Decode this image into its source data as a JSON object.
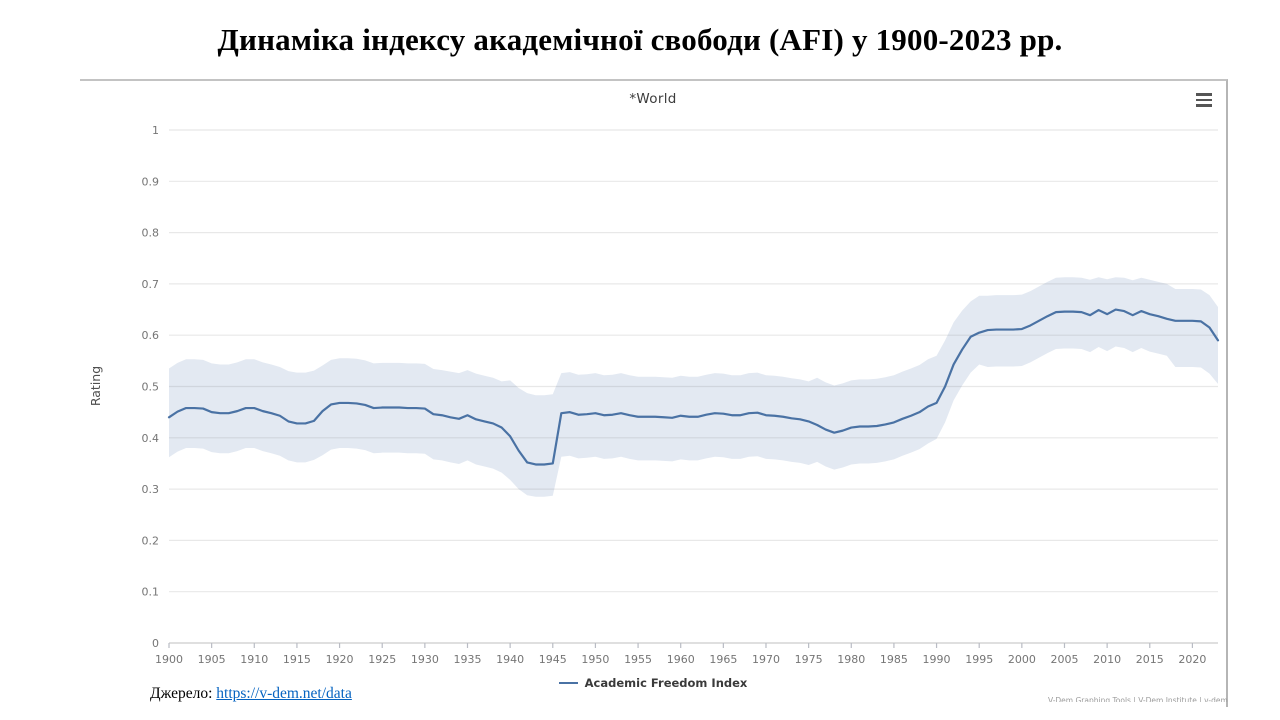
{
  "page": {
    "title": "Динаміка індексу академічної свободи (AFI) у 1900-2023 рр.",
    "source_label": "Джерело:",
    "source_link": "https://v-dem.net/data",
    "attribution_partial": "V-Dem Graphing Tools  |  V-Dem Institute  |  v-dem.net",
    "link_color": "#0563c1"
  },
  "chart": {
    "title": "*World",
    "ylabel": "Rating",
    "colors": {
      "line": "#4a72a4",
      "band": "#e3e9f2",
      "grid": "rgba(110,110,110,0.16)",
      "axis": "rgba(110,110,110,0.35)",
      "tick": "#b9bcc4",
      "tick_text": "#757575"
    }
  },
  "chart_data": {
    "type": "line",
    "title": "*World",
    "xlabel": "",
    "ylabel": "Rating",
    "ylim": [
      0,
      1
    ],
    "y_ticks": [
      0,
      0.1,
      0.2,
      0.3,
      0.4,
      0.5,
      0.6,
      0.7,
      0.8,
      0.9,
      1
    ],
    "x_ticks": [
      1900,
      1905,
      1910,
      1915,
      1920,
      1925,
      1930,
      1935,
      1940,
      1945,
      1950,
      1955,
      1960,
      1965,
      1970,
      1975,
      1980,
      1985,
      1990,
      1995,
      2000,
      2005,
      2010,
      2015,
      2020
    ],
    "grid": true,
    "legend_position": "bottom",
    "series": [
      {
        "name": "Academic Freedom Index",
        "x": [
          1900,
          1901,
          1902,
          1903,
          1904,
          1905,
          1906,
          1907,
          1908,
          1909,
          1910,
          1911,
          1912,
          1913,
          1914,
          1915,
          1916,
          1917,
          1918,
          1919,
          1920,
          1921,
          1922,
          1923,
          1924,
          1925,
          1926,
          1927,
          1928,
          1929,
          1930,
          1931,
          1932,
          1933,
          1934,
          1935,
          1936,
          1937,
          1938,
          1939,
          1940,
          1941,
          1942,
          1943,
          1944,
          1945,
          1946,
          1947,
          1948,
          1949,
          1950,
          1951,
          1952,
          1953,
          1954,
          1955,
          1956,
          1957,
          1958,
          1959,
          1960,
          1961,
          1962,
          1963,
          1964,
          1965,
          1966,
          1967,
          1968,
          1969,
          1970,
          1971,
          1972,
          1973,
          1974,
          1975,
          1976,
          1977,
          1978,
          1979,
          1980,
          1981,
          1982,
          1983,
          1984,
          1985,
          1986,
          1987,
          1988,
          1989,
          1990,
          1991,
          1992,
          1993,
          1994,
          1995,
          1996,
          1997,
          1998,
          1999,
          2000,
          2001,
          2002,
          2003,
          2004,
          2005,
          2006,
          2007,
          2008,
          2009,
          2010,
          2011,
          2012,
          2013,
          2014,
          2015,
          2016,
          2017,
          2018,
          2019,
          2020,
          2021,
          2022,
          2023
        ],
        "y": [
          0.44,
          0.451,
          0.458,
          0.458,
          0.457,
          0.45,
          0.448,
          0.448,
          0.452,
          0.458,
          0.458,
          0.452,
          0.448,
          0.443,
          0.432,
          0.428,
          0.428,
          0.433,
          0.452,
          0.465,
          0.468,
          0.468,
          0.467,
          0.464,
          0.458,
          0.459,
          0.459,
          0.459,
          0.458,
          0.458,
          0.457,
          0.446,
          0.444,
          0.44,
          0.437,
          0.444,
          0.436,
          0.432,
          0.428,
          0.42,
          0.403,
          0.375,
          0.352,
          0.348,
          0.348,
          0.35,
          0.448,
          0.45,
          0.445,
          0.446,
          0.448,
          0.444,
          0.445,
          0.448,
          0.444,
          0.441,
          0.441,
          0.441,
          0.44,
          0.439,
          0.443,
          0.441,
          0.441,
          0.445,
          0.448,
          0.447,
          0.444,
          0.444,
          0.448,
          0.449,
          0.444,
          0.443,
          0.441,
          0.438,
          0.436,
          0.432,
          0.425,
          0.416,
          0.41,
          0.414,
          0.42,
          0.422,
          0.422,
          0.423,
          0.426,
          0.43,
          0.437,
          0.443,
          0.45,
          0.461,
          0.468,
          0.5,
          0.543,
          0.572,
          0.597,
          0.605,
          0.61,
          0.611,
          0.611,
          0.611,
          0.612,
          0.619,
          0.628,
          0.637,
          0.645,
          0.646,
          0.646,
          0.645,
          0.639,
          0.649,
          0.641,
          0.65,
          0.647,
          0.639,
          0.647,
          0.641,
          0.637,
          0.632,
          0.628,
          0.628,
          0.628,
          0.627,
          0.615,
          0.59
        ]
      }
    ],
    "band": {
      "name": "confidence-interval",
      "hi": [
        0.535,
        0.546,
        0.553,
        0.553,
        0.552,
        0.545,
        0.543,
        0.543,
        0.547,
        0.553,
        0.553,
        0.547,
        0.543,
        0.538,
        0.53,
        0.527,
        0.527,
        0.531,
        0.541,
        0.552,
        0.555,
        0.555,
        0.554,
        0.551,
        0.545,
        0.546,
        0.546,
        0.546,
        0.545,
        0.545,
        0.544,
        0.534,
        0.532,
        0.529,
        0.526,
        0.532,
        0.525,
        0.521,
        0.517,
        0.51,
        0.512,
        0.497,
        0.487,
        0.483,
        0.483,
        0.485,
        0.526,
        0.528,
        0.523,
        0.524,
        0.526,
        0.522,
        0.523,
        0.526,
        0.522,
        0.519,
        0.519,
        0.519,
        0.518,
        0.517,
        0.521,
        0.519,
        0.519,
        0.523,
        0.526,
        0.525,
        0.522,
        0.522,
        0.526,
        0.527,
        0.522,
        0.521,
        0.519,
        0.516,
        0.514,
        0.51,
        0.517,
        0.508,
        0.502,
        0.506,
        0.512,
        0.514,
        0.514,
        0.515,
        0.518,
        0.522,
        0.529,
        0.535,
        0.542,
        0.553,
        0.56,
        0.59,
        0.625,
        0.648,
        0.666,
        0.677,
        0.677,
        0.678,
        0.678,
        0.678,
        0.679,
        0.686,
        0.695,
        0.704,
        0.712,
        0.713,
        0.713,
        0.712,
        0.708,
        0.713,
        0.709,
        0.713,
        0.712,
        0.707,
        0.712,
        0.708,
        0.704,
        0.7,
        0.69,
        0.69,
        0.69,
        0.689,
        0.678,
        0.655
      ],
      "lo": [
        0.362,
        0.373,
        0.38,
        0.38,
        0.379,
        0.372,
        0.37,
        0.37,
        0.374,
        0.38,
        0.38,
        0.374,
        0.37,
        0.365,
        0.356,
        0.352,
        0.352,
        0.357,
        0.366,
        0.377,
        0.38,
        0.38,
        0.379,
        0.376,
        0.37,
        0.371,
        0.371,
        0.371,
        0.37,
        0.37,
        0.369,
        0.358,
        0.356,
        0.352,
        0.349,
        0.356,
        0.348,
        0.344,
        0.34,
        0.332,
        0.318,
        0.3,
        0.288,
        0.285,
        0.285,
        0.287,
        0.363,
        0.365,
        0.36,
        0.361,
        0.363,
        0.359,
        0.36,
        0.363,
        0.359,
        0.356,
        0.356,
        0.356,
        0.355,
        0.354,
        0.358,
        0.356,
        0.356,
        0.36,
        0.363,
        0.362,
        0.359,
        0.359,
        0.363,
        0.364,
        0.359,
        0.358,
        0.356,
        0.353,
        0.351,
        0.347,
        0.353,
        0.344,
        0.338,
        0.342,
        0.348,
        0.35,
        0.35,
        0.351,
        0.354,
        0.358,
        0.365,
        0.371,
        0.378,
        0.389,
        0.398,
        0.43,
        0.473,
        0.502,
        0.527,
        0.543,
        0.538,
        0.539,
        0.539,
        0.539,
        0.54,
        0.547,
        0.556,
        0.565,
        0.573,
        0.574,
        0.574,
        0.573,
        0.567,
        0.577,
        0.569,
        0.578,
        0.575,
        0.567,
        0.575,
        0.568,
        0.564,
        0.56,
        0.538,
        0.538,
        0.538,
        0.537,
        0.525,
        0.505
      ]
    }
  }
}
